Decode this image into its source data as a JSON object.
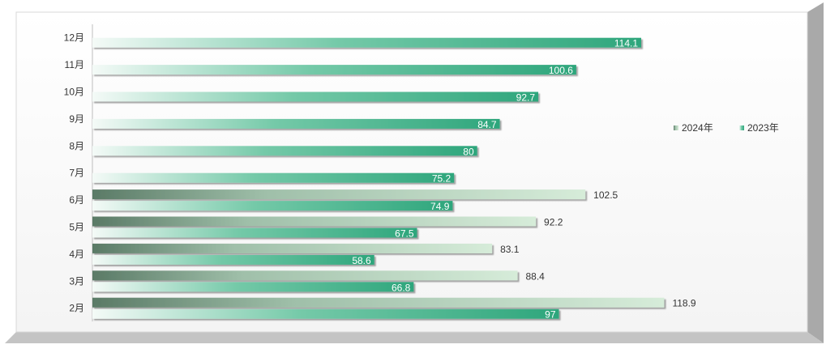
{
  "chart_data": {
    "type": "bar",
    "orientation": "horizontal",
    "categories": [
      "2月",
      "3月",
      "4月",
      "5月",
      "6月",
      "7月",
      "8月",
      "9月",
      "10月",
      "11月",
      "12月"
    ],
    "series": [
      {
        "name": "2024年",
        "color": "#5a7a66",
        "values": [
          118.9,
          88.4,
          83.1,
          92.2,
          102.5,
          null,
          null,
          null,
          null,
          null,
          null
        ]
      },
      {
        "name": "2023年",
        "color": "#36b08a",
        "values": [
          97,
          66.8,
          58.6,
          67.5,
          74.9,
          75.2,
          80,
          84.7,
          92.7,
          100.6,
          114.1
        ]
      }
    ],
    "xlim": [
      0,
      140
    ],
    "grid": false,
    "legend_position": "right",
    "title": "",
    "xlabel": "",
    "ylabel": ""
  }
}
